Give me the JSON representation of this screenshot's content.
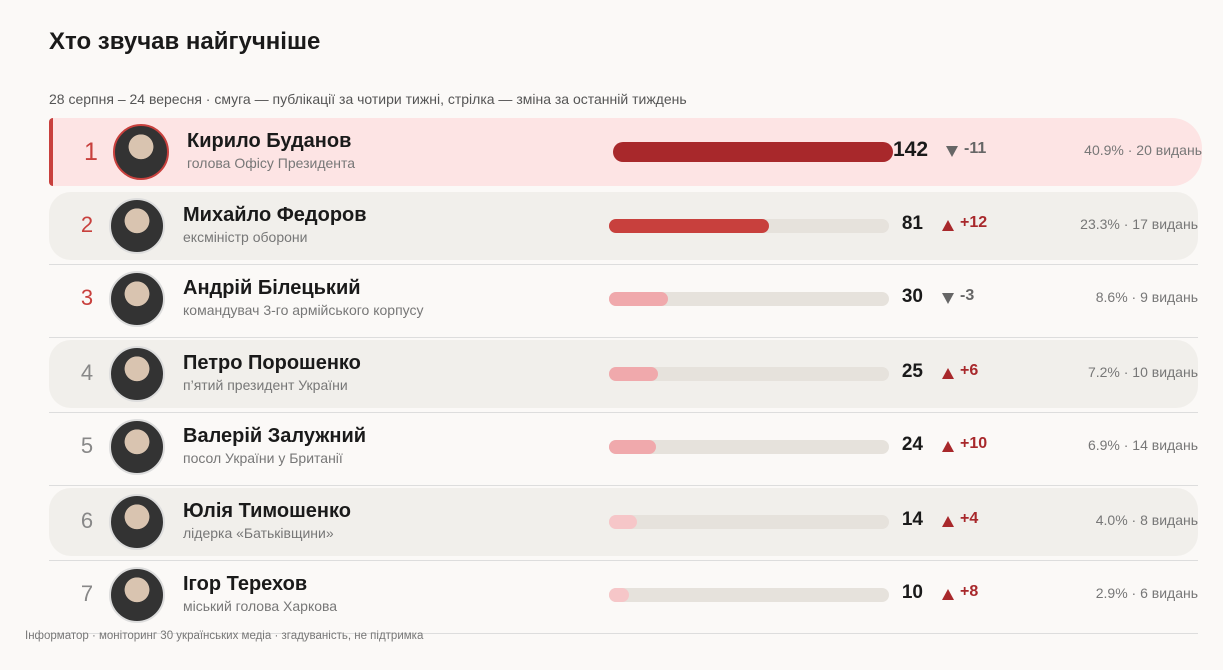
{
  "title": "Хто звучав найгучніше",
  "subtitle": "28 серпня – 24 вересня · смуга — публікації за чотири тижні, стрілка — зміна за останній тиждень",
  "footer": "Інформатор · моніторинг 30 українських медіа · згадуваність, не підтримка",
  "rows": [
    {
      "rank": "1",
      "name": "Кирило Буданов",
      "role": "голова Офісу Президента",
      "count": 142,
      "change": "-11",
      "stats": "40.9% · 20 видань",
      "bar_color": "#a8282b"
    },
    {
      "rank": "2",
      "name": "Михайло Федоров",
      "role": "ексміністр оборони",
      "count": 81,
      "change": "+12",
      "stats": "23.3% · 17 видань",
      "bar_color": "#c8403d"
    },
    {
      "rank": "3",
      "name": "Андрій Білецький",
      "role": "командувач 3-го армійського корпусу",
      "count": 30,
      "change": "-3",
      "stats": "8.6% · 9 видань",
      "bar_color": "#f0a9ac"
    },
    {
      "rank": "4",
      "name": "Петро Порошенко",
      "role": "п’ятий президент України",
      "count": 25,
      "change": "+6",
      "stats": "7.2% · 10 видань",
      "bar_color": "#f0a9ac"
    },
    {
      "rank": "5",
      "name": "Валерій Залужний",
      "role": "посол України у Британії",
      "count": 24,
      "change": "+10",
      "stats": "6.9% · 14 видань",
      "bar_color": "#f0a9ac"
    },
    {
      "rank": "6",
      "name": "Юлія Тимошенко",
      "role": "лідерка «Батьківщини»",
      "count": 14,
      "change": "+4",
      "stats": "4.0% · 8 видань",
      "bar_color": "#f6c6c8"
    },
    {
      "rank": "7",
      "name": "Ігор Терехов",
      "role": "міський голова Харкова",
      "count": 10,
      "change": "+8",
      "stats": "2.9% · 6 видань",
      "bar_color": "#f6c6c8"
    }
  ]
}
